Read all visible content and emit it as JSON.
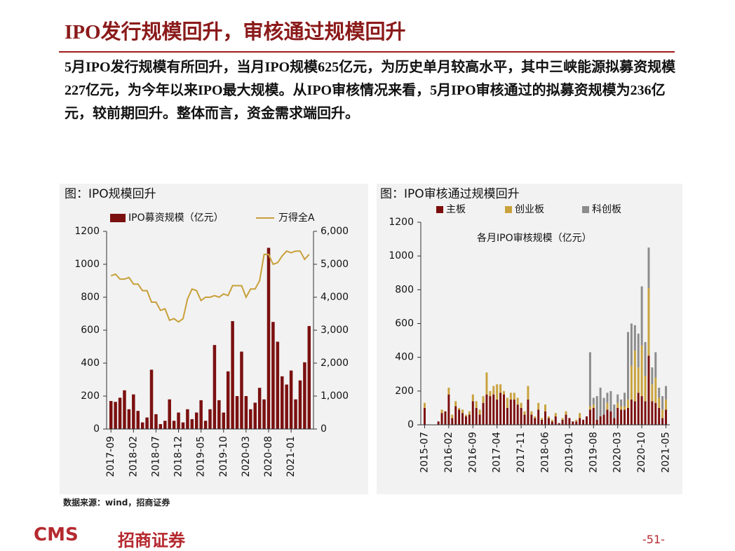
{
  "header": {
    "title": "IPO发行规模回升，审核通过规模回升"
  },
  "body": {
    "paragraph": "5月IPO发行规模有所回升，当月IPO规模625亿元，为历史单月较高水平，其中三峡能源拟募资规模227亿元，为今年以来IPO最大规模。从IPO审核情况来看，5月IPO审核通过的拟募资规模为236亿元，较前期回升。整体而言，资金需求端回升。"
  },
  "chart_data": [
    {
      "type": "bar-line",
      "title": "图：IPO规模回升",
      "categories": [
        "2017-09",
        null,
        null,
        null,
        null,
        "2018-02",
        null,
        null,
        null,
        null,
        "2018-07",
        null,
        null,
        null,
        null,
        "2018-12",
        null,
        null,
        null,
        null,
        "2019-05",
        null,
        null,
        null,
        null,
        "2019-10",
        null,
        null,
        null,
        null,
        "2020-03",
        null,
        null,
        null,
        null,
        "2020-08",
        null,
        null,
        null,
        null,
        "2021-01",
        null,
        null,
        null,
        null
      ],
      "series": [
        {
          "name": "IPO募资规模（亿元）",
          "color": "#7b1010",
          "values": [
            170,
            165,
            190,
            235,
            120,
            210,
            110,
            40,
            70,
            360,
            90,
            30,
            50,
            180,
            50,
            100,
            40,
            120,
            60,
            100,
            175,
            50,
            120,
            510,
            175,
            100,
            350,
            655,
            200,
            470,
            200,
            120,
            160,
            250,
            180,
            1100,
            650,
            530,
            320,
            270,
            355,
            180,
            295,
            405,
            625
          ]
        },
        {
          "name": "万得全A",
          "color": "#c8a03a",
          "axis": "y2",
          "values": [
            4650,
            4700,
            4550,
            4550,
            4600,
            4400,
            4400,
            4200,
            4200,
            3850,
            3850,
            3600,
            3650,
            3300,
            3350,
            3250,
            3350,
            3950,
            4250,
            4200,
            3900,
            4000,
            4000,
            4050,
            4000,
            4100,
            4050,
            4350,
            4350,
            4350,
            4000,
            4250,
            4250,
            4500,
            5300,
            5300,
            5000,
            5050,
            5250,
            5400,
            5350,
            5400,
            5400,
            5150,
            5300
          ]
        }
      ],
      "ylim": [
        0,
        1200
      ],
      "yticks": [
        0,
        200,
        400,
        600,
        800,
        1000,
        1200
      ],
      "y2lim": [
        0,
        6000
      ],
      "y2ticks": [
        0,
        {
          "value": 1000,
          "label": "1,000"
        },
        {
          "value": 2000,
          "label": "2,000"
        },
        {
          "value": 3000,
          "label": "3,000"
        },
        {
          "value": 4000,
          "label": "4,000"
        },
        {
          "value": 5000,
          "label": "5,000"
        },
        {
          "value": 6000,
          "label": "6,000"
        }
      ]
    },
    {
      "type": "stacked-bar",
      "title": "图：IPO审核通过规模回升",
      "annotation": "各月IPO审核规模（亿元）",
      "categories": [
        "2015-07",
        null,
        null,
        null,
        null,
        null,
        null,
        "2016-02",
        null,
        null,
        null,
        null,
        null,
        null,
        "2016-09",
        null,
        null,
        null,
        null,
        null,
        null,
        "2017-04",
        null,
        null,
        null,
        null,
        null,
        null,
        "2017-11",
        null,
        null,
        null,
        null,
        null,
        null,
        "2018-06",
        null,
        null,
        null,
        null,
        null,
        null,
        "2019-01",
        null,
        null,
        null,
        null,
        null,
        null,
        "2019-08",
        null,
        null,
        null,
        null,
        null,
        null,
        "2020-03",
        null,
        null,
        null,
        null,
        null,
        null,
        "2020-10",
        null,
        null,
        null,
        null,
        null,
        null,
        "2021-05"
      ],
      "series": [
        {
          "name": "主板",
          "color": "#7b0c0c",
          "values": [
            100,
            0,
            0,
            0,
            20,
            70,
            80,
            180,
            40,
            110,
            90,
            70,
            50,
            60,
            140,
            100,
            60,
            130,
            180,
            170,
            180,
            150,
            190,
            180,
            100,
            150,
            150,
            120,
            100,
            60,
            150,
            60,
            40,
            90,
            30,
            80,
            40,
            20,
            50,
            10,
            30,
            60,
            40,
            20,
            20,
            40,
            30,
            50,
            90,
            100,
            30,
            50,
            60,
            90,
            80,
            40,
            100,
            90,
            90,
            100,
            150,
            140,
            190,
            170,
            140,
            410,
            140,
            130,
            100,
            40,
            90
          ]
        },
        {
          "name": "创业板",
          "color": "#c9a23c",
          "values": [
            30,
            0,
            0,
            0,
            0,
            20,
            0,
            40,
            20,
            30,
            10,
            20,
            10,
            20,
            40,
            40,
            30,
            40,
            130,
            30,
            50,
            90,
            50,
            20,
            60,
            40,
            40,
            40,
            30,
            20,
            80,
            20,
            10,
            40,
            10,
            40,
            10,
            10,
            20,
            0,
            10,
            20,
            0,
            0,
            10,
            30,
            0,
            0,
            20,
            20,
            0,
            0,
            0,
            40,
            0,
            0,
            30,
            20,
            20,
            50,
            200,
            300,
            150,
            300,
            150,
            400,
            100,
            150,
            60,
            50,
            60
          ]
        },
        {
          "name": "科创板",
          "color": "#8c8c8c",
          "values": [
            0,
            0,
            0,
            0,
            0,
            0,
            0,
            0,
            0,
            0,
            0,
            0,
            0,
            0,
            0,
            0,
            0,
            0,
            0,
            0,
            0,
            0,
            0,
            0,
            0,
            0,
            0,
            0,
            0,
            0,
            0,
            0,
            0,
            0,
            0,
            0,
            0,
            0,
            0,
            0,
            0,
            0,
            0,
            0,
            0,
            0,
            0,
            0,
            320,
            40,
            140,
            170,
            100,
            60,
            120,
            80,
            50,
            40,
            80,
            400,
            250,
            150,
            200,
            350,
            200,
            240,
            100,
            150,
            60,
            80,
            80
          ]
        }
      ],
      "ylim": [
        0,
        1200
      ],
      "yticks": [
        0,
        200,
        400,
        600,
        800,
        1000,
        1200
      ]
    }
  ],
  "footer": {
    "source": "数据来源：wind，招商证券",
    "logo": "CMS",
    "logo_text": "招商证券",
    "page": "-51-"
  }
}
